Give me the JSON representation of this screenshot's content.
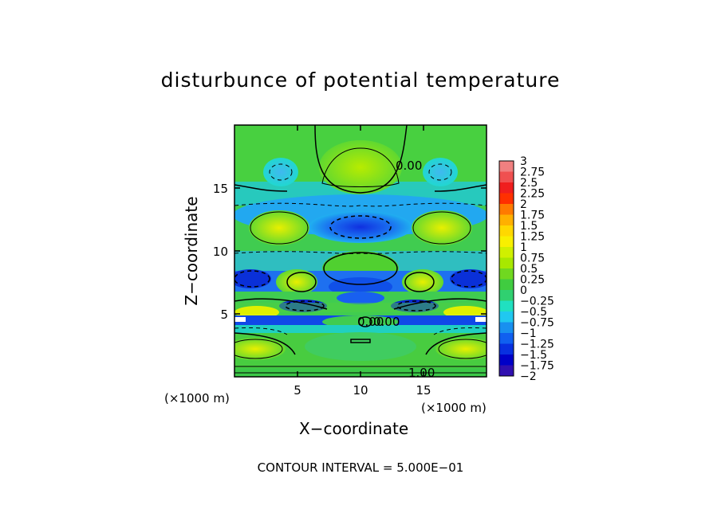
{
  "chart_data": {
    "type": "heatmap",
    "title": "disturbunce of potential temperature",
    "xlabel": "X−coordinate",
    "ylabel": "Z−coordinate",
    "x_unit": "(×1000 m)",
    "xlim": [
      0,
      20
    ],
    "ylim": [
      0,
      20
    ],
    "x_ticks": [
      "5",
      "10",
      "15"
    ],
    "y_ticks": [
      "5",
      "10",
      "15"
    ],
    "colorbar": {
      "labels": [
        "3",
        "2.75",
        "2.5",
        "2.25",
        "2",
        "1.75",
        "1.5",
        "1.25",
        "1",
        "0.75",
        "0.5",
        "0.25",
        "0",
        "−0.25",
        "−0.5",
        "−0.75",
        "−1",
        "−1.25",
        "−1.5",
        "−1.75",
        "−2"
      ],
      "colors": [
        "#f08080",
        "#f05050",
        "#f01e1e",
        "#ff3000",
        "#ff7a00",
        "#ffb000",
        "#ffd800",
        "#f8f000",
        "#d0f000",
        "#a8e800",
        "#70d820",
        "#40cc40",
        "#30d070",
        "#20e0c0",
        "#20c8f0",
        "#1890f0",
        "#1060f0",
        "#0830e0",
        "#0000c8",
        "#3010b0",
        "#7010b0"
      ]
    },
    "contour_labels": [
      "0.00",
      "0.00",
      "0.00",
      "1.00"
    ],
    "contour_interval": "CONTOUR INTERVAL = 5.000E−01"
  }
}
